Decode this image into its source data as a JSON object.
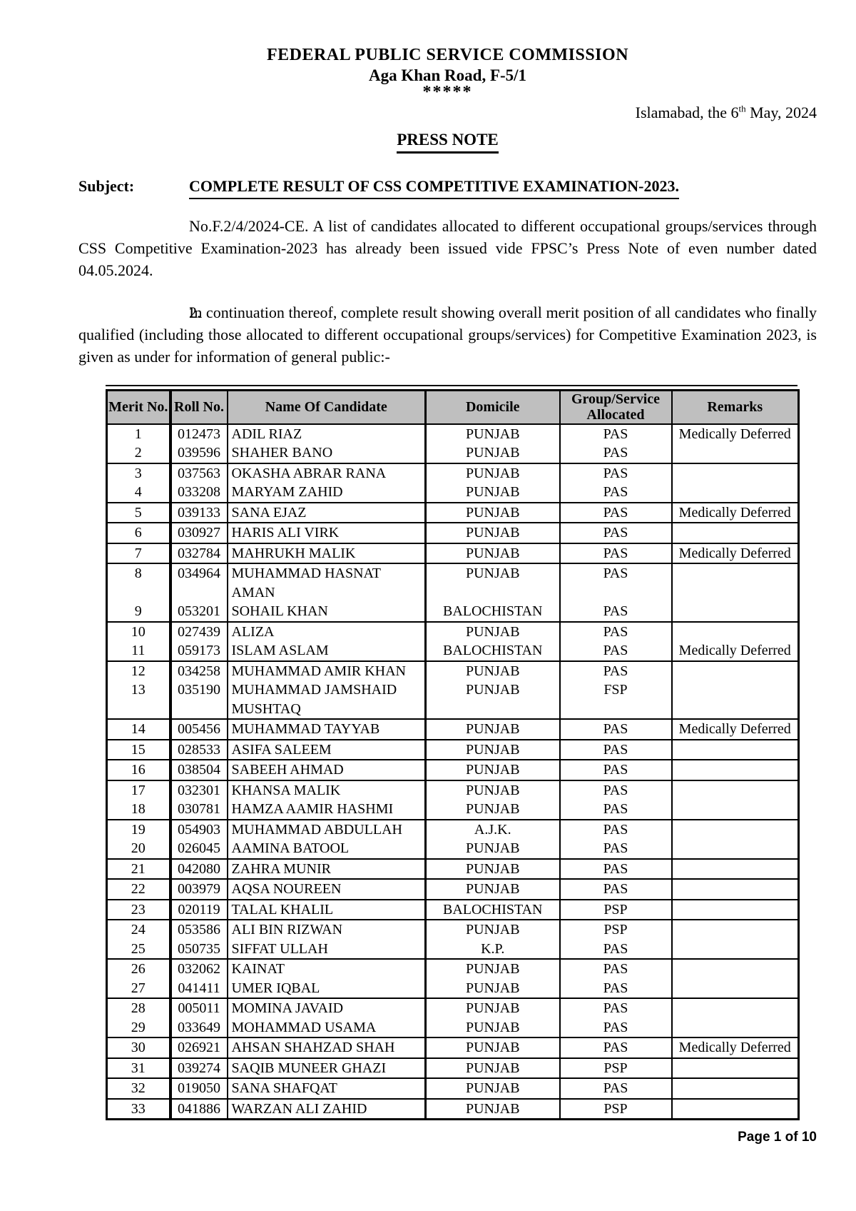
{
  "header": {
    "org": "FEDERAL PUBLIC SERVICE COMMISSION",
    "address": "Aga Khan Road, F-5/1",
    "stars": "*****",
    "date_prefix": "Islamabad, the 6",
    "date_sup": "th",
    "date_suffix": " May, 2024",
    "press_note": "PRESS NOTE"
  },
  "subject": {
    "label": "Subject:",
    "text": "COMPLETE RESULT OF CSS COMPETITIVE EXAMINATION-2023."
  },
  "paragraphs": {
    "p1": "No.F.2/4/2024-CE. A list of candidates allocated to different occupational groups/services through CSS Competitive Examination-2023 has already been issued vide FPSC’s Press Note of even number dated 04.05.2024.",
    "p2_num": "2.",
    "p2": "In continuation thereof, complete result showing overall merit position of all candidates who finally qualified (including those allocated to different occupational groups/services) for Competitive Examination 2023, is given as under for information of general public:-"
  },
  "colors": {
    "table_header_bg": "#bfbfbf",
    "ink": "#000000",
    "page_bg": "#ffffff"
  },
  "table": {
    "columns": [
      "Merit No.",
      "Roll No.",
      "Name Of Candidate",
      "Domicile",
      "Group/Service\nAllocated",
      "Remarks"
    ],
    "rows": [
      {
        "merit": "1",
        "roll": "012473",
        "name": "ADIL RIAZ",
        "domicile": "PUNJAB",
        "group": "PAS",
        "remarks": "Medically Deferred",
        "sep": false
      },
      {
        "merit": "2",
        "roll": "039596",
        "name": "SHAHER BANO",
        "domicile": "PUNJAB",
        "group": "PAS",
        "remarks": "",
        "sep": true
      },
      {
        "merit": "3",
        "roll": "037563",
        "name": "OKASHA ABRAR RANA",
        "domicile": "PUNJAB",
        "group": "PAS",
        "remarks": "",
        "sep": false
      },
      {
        "merit": "4",
        "roll": "033208",
        "name": "MARYAM ZAHID",
        "domicile": "PUNJAB",
        "group": "PAS",
        "remarks": "",
        "sep": true
      },
      {
        "merit": "5",
        "roll": "039133",
        "name": "SANA EJAZ",
        "domicile": "PUNJAB",
        "group": "PAS",
        "remarks": "Medically Deferred",
        "sep": true
      },
      {
        "merit": "6",
        "roll": "030927",
        "name": "HARIS ALI VIRK",
        "domicile": "PUNJAB",
        "group": "PAS",
        "remarks": "",
        "sep": true
      },
      {
        "merit": "7",
        "roll": "032784",
        "name": "MAHRUKH MALIK",
        "domicile": "PUNJAB",
        "group": "PAS",
        "remarks": "Medically Deferred",
        "sep": true
      },
      {
        "merit": "8",
        "roll": "034964",
        "name": "MUHAMMAD HASNAT\nAMAN",
        "domicile": "PUNJAB",
        "group": "PAS",
        "remarks": "",
        "sep": false
      },
      {
        "merit": "9",
        "roll": "053201",
        "name": "SOHAIL KHAN",
        "domicile": "BALOCHISTAN",
        "group": "PAS",
        "remarks": "",
        "sep": true
      },
      {
        "merit": "10",
        "roll": "027439",
        "name": "ALIZA",
        "domicile": "PUNJAB",
        "group": "PAS",
        "remarks": "",
        "sep": false
      },
      {
        "merit": "11",
        "roll": "059173",
        "name": "ISLAM ASLAM",
        "domicile": "BALOCHISTAN",
        "group": "PAS",
        "remarks": "Medically Deferred",
        "sep": true
      },
      {
        "merit": "12",
        "roll": "034258",
        "name": "MUHAMMAD AMIR KHAN",
        "domicile": "PUNJAB",
        "group": "PAS",
        "remarks": "",
        "sep": false
      },
      {
        "merit": "13",
        "roll": "035190",
        "name": "MUHAMMAD JAMSHAID\nMUSHTAQ",
        "domicile": "PUNJAB",
        "group": "FSP",
        "remarks": "",
        "sep": true
      },
      {
        "merit": "14",
        "roll": "005456",
        "name": "MUHAMMAD TAYYAB",
        "domicile": "PUNJAB",
        "group": "PAS",
        "remarks": "Medically Deferred",
        "sep": true
      },
      {
        "merit": "15",
        "roll": "028533",
        "name": "ASIFA SALEEM",
        "domicile": "PUNJAB",
        "group": "PAS",
        "remarks": "",
        "sep": true
      },
      {
        "merit": "16",
        "roll": "038504",
        "name": "SABEEH AHMAD",
        "domicile": "PUNJAB",
        "group": "PAS",
        "remarks": "",
        "sep": true
      },
      {
        "merit": "17",
        "roll": "032301",
        "name": "KHANSA MALIK",
        "domicile": "PUNJAB",
        "group": "PAS",
        "remarks": "",
        "sep": false
      },
      {
        "merit": "18",
        "roll": "030781",
        "name": "HAMZA AAMIR HASHMI",
        "domicile": "PUNJAB",
        "group": "PAS",
        "remarks": "",
        "sep": true
      },
      {
        "merit": "19",
        "roll": "054903",
        "name": "MUHAMMAD ABDULLAH",
        "domicile": "A.J.K.",
        "group": "PAS",
        "remarks": "",
        "sep": false
      },
      {
        "merit": "20",
        "roll": "026045",
        "name": "AAMINA BATOOL",
        "domicile": "PUNJAB",
        "group": "PAS",
        "remarks": "",
        "sep": true
      },
      {
        "merit": "21",
        "roll": "042080",
        "name": "ZAHRA MUNIR",
        "domicile": "PUNJAB",
        "group": "PAS",
        "remarks": "",
        "sep": true
      },
      {
        "merit": "22",
        "roll": "003979",
        "name": "AQSA NOUREEN",
        "domicile": "PUNJAB",
        "group": "PAS",
        "remarks": "",
        "sep": true
      },
      {
        "merit": "23",
        "roll": "020119",
        "name": "TALAL KHALIL",
        "domicile": "BALOCHISTAN",
        "group": "PSP",
        "remarks": "",
        "sep": true
      },
      {
        "merit": "24",
        "roll": "053586",
        "name": "ALI BIN RIZWAN",
        "domicile": "PUNJAB",
        "group": "PSP",
        "remarks": "",
        "sep": false
      },
      {
        "merit": "25",
        "roll": "050735",
        "name": "SIFFAT ULLAH",
        "domicile": "K.P.",
        "group": "PAS",
        "remarks": "",
        "sep": true
      },
      {
        "merit": "26",
        "roll": "032062",
        "name": "KAINAT",
        "domicile": "PUNJAB",
        "group": "PAS",
        "remarks": "",
        "sep": false
      },
      {
        "merit": "27",
        "roll": "041411",
        "name": "UMER IQBAL",
        "domicile": "PUNJAB",
        "group": "PAS",
        "remarks": "",
        "sep": true
      },
      {
        "merit": "28",
        "roll": "005011",
        "name": "MOMINA JAVAID",
        "domicile": "PUNJAB",
        "group": "PAS",
        "remarks": "",
        "sep": false
      },
      {
        "merit": "29",
        "roll": "033649",
        "name": "MOHAMMAD USAMA",
        "domicile": "PUNJAB",
        "group": "PAS",
        "remarks": "",
        "sep": true
      },
      {
        "merit": "30",
        "roll": "026921",
        "name": "AHSAN SHAHZAD SHAH",
        "domicile": "PUNJAB",
        "group": "PAS",
        "remarks": "Medically Deferred",
        "sep": true
      },
      {
        "merit": "31",
        "roll": "039274",
        "name": "SAQIB MUNEER GHAZI",
        "domicile": "PUNJAB",
        "group": "PSP",
        "remarks": "",
        "sep": true
      },
      {
        "merit": "32",
        "roll": "019050",
        "name": "SANA SHAFQAT",
        "domicile": "PUNJAB",
        "group": "PAS",
        "remarks": "",
        "sep": true
      },
      {
        "merit": "33",
        "roll": "041886",
        "name": "WARZAN ALI ZAHID",
        "domicile": "PUNJAB",
        "group": "PSP",
        "remarks": "",
        "sep": false
      }
    ]
  },
  "footer": {
    "page": "Page 1 of 10"
  }
}
